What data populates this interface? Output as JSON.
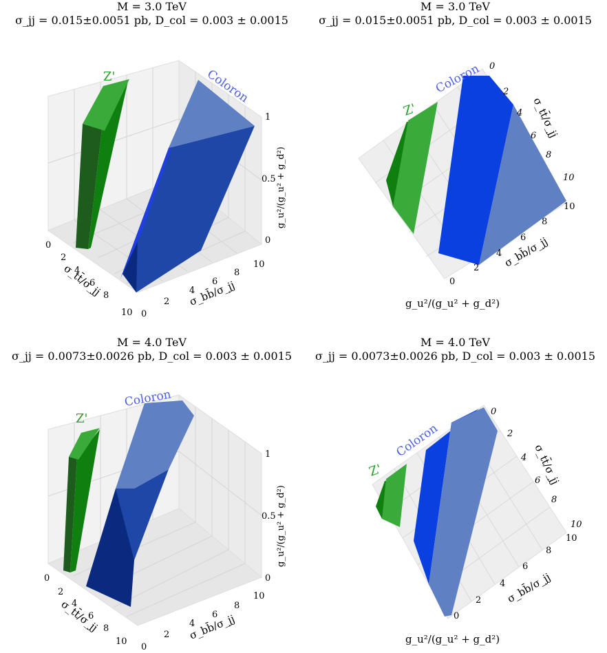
{
  "chart_data": [
    {
      "type": "scatter",
      "view": "perspective",
      "title_line1": "M = 3.0 TeV",
      "title_line2": "σ_jj = 0.015±0.0051 pb, D_col = 0.003 ± 0.0015",
      "xlabel": "σ_tt̄/σ_jj",
      "ylabel": "σ_bb̄/σ_jj",
      "zlabel": "g_u²/(g_u² + g_d²)",
      "xticks": [
        "0",
        "2",
        "4",
        "6",
        "8",
        "10"
      ],
      "yticks": [
        "0",
        "2",
        "4",
        "6",
        "8",
        "10"
      ],
      "zticks": [
        "0",
        "0.5",
        "1"
      ],
      "xlim": [
        0,
        10
      ],
      "ylim": [
        0,
        10
      ],
      "zlim": [
        0,
        1
      ],
      "series": [
        {
          "name": "Z'",
          "color": "#2ca02c"
        },
        {
          "name": "Coloron",
          "color": "#1f3fdf"
        }
      ]
    },
    {
      "type": "scatter",
      "view": "top",
      "title_line1": "M = 3.0 TeV",
      "title_line2": "σ_jj = 0.015±0.0051 pb, D_col = 0.003 ± 0.0015",
      "xlabel": "σ_tt̄/σ_jj",
      "ylabel": "σ_bb̄/σ_jj",
      "zlabel": "g_u²/(g_u² + g_d²)",
      "xticks": [
        "0",
        "2",
        "4",
        "6",
        "8",
        "10"
      ],
      "yticks": [
        "0",
        "2",
        "4",
        "6",
        "8",
        "10"
      ],
      "zticks": [
        "0"
      ],
      "xlim": [
        0,
        10
      ],
      "ylim": [
        0,
        10
      ],
      "series": [
        {
          "name": "Z'",
          "color": "#2ca02c"
        },
        {
          "name": "Coloron",
          "color": "#1f3fdf"
        }
      ]
    },
    {
      "type": "scatter",
      "view": "perspective",
      "title_line1": "M = 4.0 TeV",
      "title_line2": "σ_jj = 0.0073±0.0026 pb, D_col = 0.003 ± 0.0015",
      "xlabel": "σ_tt̄/σ_jj",
      "ylabel": "σ_bb̄/σ_jj",
      "zlabel": "g_u²/(g_u² + g_d²)",
      "xticks": [
        "0",
        "2",
        "4",
        "6",
        "8",
        "10"
      ],
      "yticks": [
        "0",
        "2",
        "4",
        "6",
        "8",
        "10"
      ],
      "zticks": [
        "0",
        "0.5",
        "1"
      ],
      "xlim": [
        0,
        10
      ],
      "ylim": [
        0,
        10
      ],
      "zlim": [
        0,
        1
      ],
      "series": [
        {
          "name": "Z'",
          "color": "#2ca02c"
        },
        {
          "name": "Coloron",
          "color": "#1f3fdf"
        }
      ]
    },
    {
      "type": "scatter",
      "view": "top",
      "title_line1": "M = 4.0 TeV",
      "title_line2": "σ_jj = 0.0073±0.0026 pb, D_col = 0.003 ± 0.0015",
      "xlabel": "σ_tt̄/σ_jj",
      "ylabel": "σ_bb̄/σ_jj",
      "zlabel": "g_u²/(g_u² + g_d²)",
      "xticks": [
        "0",
        "2",
        "4",
        "6",
        "8",
        "10"
      ],
      "yticks": [
        "0",
        "2",
        "4",
        "6",
        "8",
        "10"
      ],
      "zticks": [
        "0"
      ],
      "xlim": [
        0,
        10
      ],
      "ylim": [
        0,
        10
      ],
      "series": [
        {
          "name": "Z'",
          "color": "#2ca02c"
        },
        {
          "name": "Coloron",
          "color": "#1f3fdf"
        }
      ]
    }
  ]
}
